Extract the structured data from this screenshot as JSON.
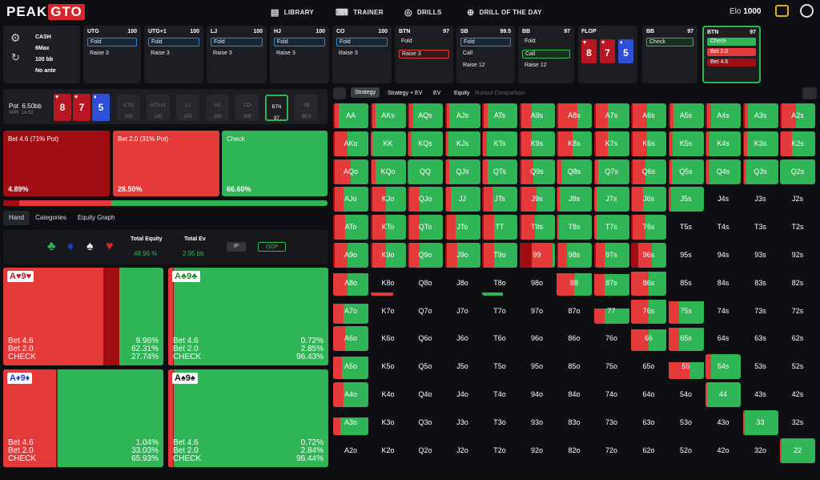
{
  "nav": {
    "logo_a": "PEAK",
    "logo_b": "GTO",
    "library": "LIBRARY",
    "trainer": "TRAINER",
    "drills": "DRILLS",
    "drill_of_day": "DRILL OF THE DAY",
    "elo_label": "Elo",
    "elo_value": "1000"
  },
  "settings": {
    "game": "CASH",
    "table": "6Max",
    "stack": "100 bb",
    "ante": "No ante"
  },
  "positions": [
    {
      "name": "UTG",
      "stack": "100",
      "actions": [
        {
          "label": "Fold",
          "style": "sel"
        },
        {
          "label": "Raise 3",
          "style": ""
        }
      ]
    },
    {
      "name": "UTG+1",
      "stack": "100",
      "actions": [
        {
          "label": "Fold",
          "style": "sel"
        },
        {
          "label": "Raise 3",
          "style": ""
        }
      ]
    },
    {
      "name": "LJ",
      "stack": "100",
      "actions": [
        {
          "label": "Fold",
          "style": "sel"
        },
        {
          "label": "Raise 3",
          "style": ""
        }
      ]
    },
    {
      "name": "HJ",
      "stack": "100",
      "actions": [
        {
          "label": "Fold",
          "style": "sel"
        },
        {
          "label": "Raise 3",
          "style": ""
        }
      ]
    },
    {
      "name": "CO",
      "stack": "100",
      "actions": [
        {
          "label": "Fold",
          "style": "sel"
        },
        {
          "label": "Raise 3",
          "style": ""
        }
      ]
    },
    {
      "name": "BTN",
      "stack": "97",
      "actions": [
        {
          "label": "Fold",
          "style": ""
        },
        {
          "label": "Raise 3",
          "style": "selr"
        }
      ]
    },
    {
      "name": "SB",
      "stack": "99.5",
      "actions": [
        {
          "label": "Fold",
          "style": "sel"
        },
        {
          "label": "Call",
          "style": ""
        },
        {
          "label": "Raise 12",
          "style": ""
        }
      ]
    },
    {
      "name": "BB",
      "stack": "97",
      "actions": [
        {
          "label": "Fold",
          "style": ""
        },
        {
          "label": "Call",
          "style": "selg"
        },
        {
          "label": "Raise 12",
          "style": ""
        }
      ]
    }
  ],
  "flop": {
    "title": "FLOP",
    "cards": [
      {
        "rank": "8",
        "suit": "♥",
        "color": "red"
      },
      {
        "rank": "7",
        "suit": "♥",
        "color": "red"
      },
      {
        "rank": "5",
        "suit": "♦",
        "color": "blue"
      }
    ]
  },
  "bb_panel": {
    "name": "BB",
    "stack": "97",
    "action": "Check"
  },
  "btn_panel": {
    "name": "BTN",
    "stack": "97",
    "options": [
      {
        "label": "Check",
        "color": "#2fb556"
      },
      {
        "label": "Bet 2.0",
        "color": "#e53a3a"
      },
      {
        "label": "Bet 4.6",
        "color": "#a00d12"
      }
    ]
  },
  "pot": {
    "label": "Pot",
    "value": "6.50bb",
    "spr": "SPR: 14.92",
    "seats": [
      "UTG",
      "UTG+1",
      "LJ",
      "HJ",
      "CO",
      "BTN",
      "SB"
    ],
    "seat_vals": [
      "100",
      "100",
      "100",
      "100",
      "100",
      "97",
      "99.5"
    ],
    "board": [
      {
        "rank": "8",
        "suit": "♥",
        "color": "red"
      },
      {
        "rank": "7",
        "suit": "♥",
        "color": "red"
      },
      {
        "rank": "5",
        "suit": "♦",
        "color": "blue"
      }
    ]
  },
  "strategy": [
    {
      "label": "Bet 4.6 (71% Pot)",
      "pct": "4.89%",
      "color": "#a00d12"
    },
    {
      "label": "Bet 2.0 (31% Pot)",
      "pct": "28.50%",
      "color": "#e53a3a"
    },
    {
      "label": "Check",
      "pct": "66.60%",
      "color": "#2fb556"
    }
  ],
  "progress": {
    "bet46": 4.89,
    "bet20": 28.5,
    "check": 66.6
  },
  "tabs": [
    "Hand",
    "Categories",
    "Equity Graph"
  ],
  "equity": {
    "total_equity_label": "Total Equity",
    "total_equity": "48.96 %",
    "total_ev_label": "Total Ev",
    "total_ev": "2.95 bb",
    "ip": "IP",
    "oop": "OOP"
  },
  "combos": [
    {
      "hand": "A♥9♥",
      "suitcolor": "#c8102e",
      "bet46": "9.96%",
      "bet20": "62.31%",
      "check": "27.74%",
      "f46": 9.96,
      "f20": 62.31
    },
    {
      "hand": "A♣9♣",
      "suitcolor": "#1a8a2e",
      "bet46": "0.72%",
      "bet20": "2.85%",
      "check": "96.43%",
      "f46": 0.72,
      "f20": 2.85
    },
    {
      "hand": "A♦9♦",
      "suitcolor": "#1d3fd0",
      "bet46": "1.04%",
      "bet20": "33.03%",
      "check": "65.93%",
      "f46": 1.04,
      "f20": 33.03
    },
    {
      "hand": "A♠9♠",
      "suitcolor": "#111111",
      "bet46": "0.72%",
      "bet20": "2.84%",
      "check": "96.44%",
      "f46": 0.72,
      "f20": 2.84
    }
  ],
  "combo_labels": {
    "a": "Bet 4.6",
    "b": "Bet 2.0",
    "c": "CHECK"
  },
  "rtabs": [
    "Strategy",
    "Strategy + EV",
    "EV",
    "Equity",
    "Runout Comparison"
  ],
  "colors": {
    "bet46": "#a00d12",
    "bet20": "#e53a3a",
    "check": "#2fb556"
  },
  "matrix": [
    [
      "AA",
      "AKs",
      "AQs",
      "AJs",
      "ATs",
      "A9s",
      "A8s",
      "A7s",
      "A6s",
      "A5s",
      "A4s",
      "A3s",
      "A2s"
    ],
    [
      "AKo",
      "KK",
      "KQs",
      "KJs",
      "KTs",
      "K9s",
      "K8s",
      "K7s",
      "K6s",
      "K5s",
      "K4s",
      "K3s",
      "K2s"
    ],
    [
      "AQo",
      "KQo",
      "QQ",
      "QJs",
      "QTs",
      "Q9s",
      "Q8s",
      "Q7s",
      "Q6s",
      "Q5s",
      "Q4s",
      "Q3s",
      "Q2s"
    ],
    [
      "AJo",
      "KJo",
      "QJo",
      "JJ",
      "JTs",
      "J9s",
      "J8s",
      "J7s",
      "J6s",
      "J5s",
      "J4s",
      "J3s",
      "J2s"
    ],
    [
      "ATo",
      "KTo",
      "QTo",
      "JTo",
      "TT",
      "T9s",
      "T8s",
      "T7s",
      "T6s",
      "T5s",
      "T4s",
      "T3s",
      "T2s"
    ],
    [
      "A9o",
      "K9o",
      "Q9o",
      "J9o",
      "T9o",
      "99",
      "98s",
      "97s",
      "96s",
      "95s",
      "94s",
      "93s",
      "92s"
    ],
    [
      "A8o",
      "K8o",
      "Q8o",
      "J8o",
      "T8o",
      "98o",
      "88",
      "87s",
      "86s",
      "85s",
      "84s",
      "83s",
      "82s"
    ],
    [
      "A7o",
      "K7o",
      "Q7o",
      "J7o",
      "T7o",
      "97o",
      "87o",
      "77",
      "76s",
      "75s",
      "74s",
      "73s",
      "72s"
    ],
    [
      "A6o",
      "K6o",
      "Q6o",
      "J6o",
      "T6o",
      "96o",
      "86o",
      "76o",
      "66",
      "65s",
      "64s",
      "63s",
      "62s"
    ],
    [
      "A5o",
      "K5o",
      "Q5o",
      "J5o",
      "T5o",
      "95o",
      "85o",
      "75o",
      "65o",
      "55",
      "54s",
      "53s",
      "52s"
    ],
    [
      "A4o",
      "K4o",
      "Q4o",
      "J4o",
      "T4o",
      "94o",
      "84o",
      "74o",
      "64o",
      "54o",
      "44",
      "43s",
      "42s"
    ],
    [
      "A3o",
      "K3o",
      "Q3o",
      "J3o",
      "T3o",
      "93o",
      "83o",
      "73o",
      "63o",
      "53o",
      "43o",
      "33",
      "32s"
    ],
    [
      "A2o",
      "K2o",
      "Q2o",
      "J2o",
      "T2o",
      "92o",
      "82o",
      "72o",
      "62o",
      "52o",
      "42o",
      "32o",
      "22"
    ]
  ]
}
